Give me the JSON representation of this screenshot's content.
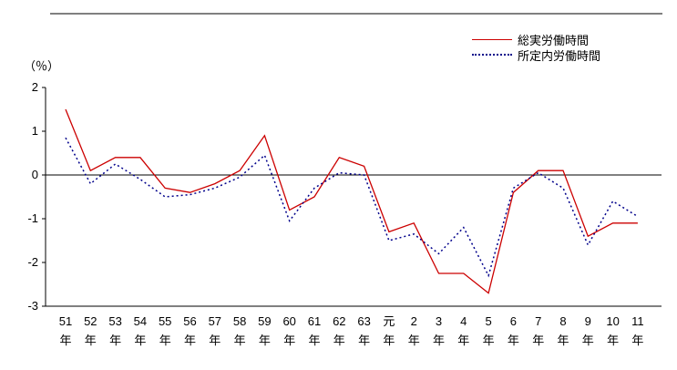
{
  "chart_data": {
    "type": "line",
    "title": "",
    "ylabel": "（％）",
    "xlabel": "",
    "ylim": [
      -3,
      2
    ],
    "yticks": [
      2,
      1,
      0,
      -1,
      -2,
      -3
    ],
    "grid": false,
    "zero_line": true,
    "legend_position": "top-right",
    "categories": [
      "51",
      "52",
      "53",
      "54",
      "55",
      "56",
      "57",
      "58",
      "59",
      "60",
      "61",
      "62",
      "63",
      "元",
      "2",
      "3",
      "4",
      "5",
      "6",
      "7",
      "8",
      "9",
      "10",
      "11"
    ],
    "category_suffix": "年",
    "series": [
      {
        "name": "総実労働時間",
        "color": "#cc0000",
        "style": "solid",
        "values": [
          1.5,
          0.1,
          0.4,
          0.4,
          -0.3,
          -0.4,
          -0.2,
          0.1,
          0.9,
          -0.8,
          -0.5,
          0.4,
          0.2,
          -1.3,
          -1.1,
          -2.25,
          -2.25,
          -2.7,
          -0.4,
          0.1,
          0.1,
          -1.4,
          -1.1,
          -1.1
        ]
      },
      {
        "name": "所定内労働時間",
        "color": "#00008b",
        "style": "dotted",
        "values": [
          0.85,
          -0.2,
          0.25,
          -0.1,
          -0.5,
          -0.45,
          -0.3,
          -0.05,
          0.45,
          -1.05,
          -0.3,
          0.05,
          0.0,
          -1.5,
          -1.35,
          -1.8,
          -1.2,
          -2.3,
          -0.3,
          0.05,
          -0.3,
          -1.6,
          -0.6,
          -0.95
        ]
      }
    ]
  }
}
